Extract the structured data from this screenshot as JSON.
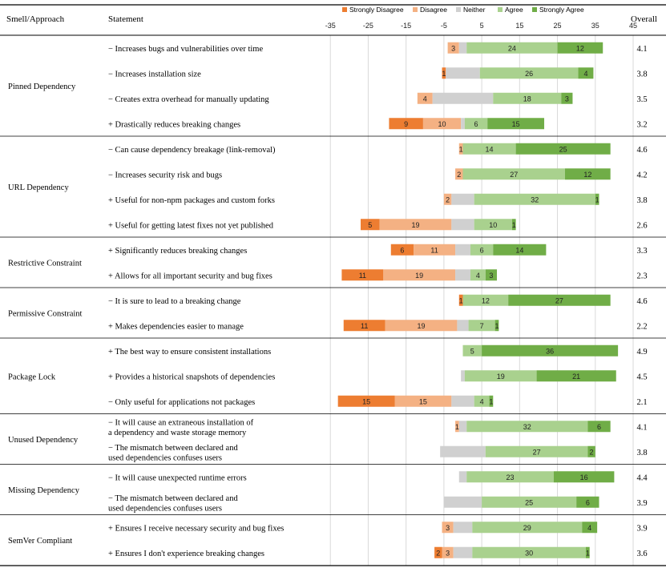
{
  "header": {
    "col_group": "Smell/Approach",
    "col_statement": "Statement",
    "col_overall": "Overall"
  },
  "chart_data": {
    "type": "bar",
    "orientation": "horizontal-diverging-stacked",
    "xlim": [
      -45,
      45
    ],
    "x_ticks": [
      -35,
      -25,
      -15,
      -5,
      5,
      15,
      25,
      35,
      45
    ],
    "grid": true,
    "legend_position": "top",
    "series": [
      {
        "name": "Strongly Disagree",
        "color": "#ED7D31"
      },
      {
        "name": "Disagree",
        "color": "#F4B183"
      },
      {
        "name": "Neither",
        "color": "#D0D0D0"
      },
      {
        "name": "Agree",
        "color": "#A9D18E"
      },
      {
        "name": "Strongly Agree",
        "color": "#70AD47"
      }
    ],
    "groups": [
      {
        "name": "Pinned Dependency",
        "rows": [
          {
            "statement": [
              "− Increases bugs and vulnerabilities over time"
            ],
            "values": [
              0,
              3,
              2,
              24,
              12
            ],
            "labels": [
              "",
              "3",
              "",
              "24",
              "12"
            ],
            "overall": "4.1"
          },
          {
            "statement": [
              "− Increases installation size"
            ],
            "values": [
              1,
              0,
              9,
              26,
              4
            ],
            "labels": [
              "1",
              "",
              "",
              "26",
              "4"
            ],
            "overall": "3.8"
          },
          {
            "statement": [
              "− Creates extra overhead for manually updating"
            ],
            "values": [
              0,
              4,
              16,
              18,
              3
            ],
            "labels": [
              "",
              "4",
              "",
              "18",
              "3"
            ],
            "overall": "3.5"
          },
          {
            "statement": [
              "+ Drastically reduces breaking changes"
            ],
            "values": [
              9,
              10,
              1,
              6,
              15
            ],
            "labels": [
              "9",
              "10",
              "",
              "6",
              "15"
            ],
            "overall": "3.2"
          }
        ]
      },
      {
        "name": "URL Dependency",
        "rows": [
          {
            "statement": [
              "− Can cause dependency breakage (link-removal)"
            ],
            "values": [
              0,
              1,
              0,
              14,
              25
            ],
            "labels": [
              "",
              "1",
              "",
              "14",
              "25"
            ],
            "overall": "4.6"
          },
          {
            "statement": [
              "− Increases security risk and bugs"
            ],
            "values": [
              0,
              2,
              0,
              27,
              12
            ],
            "labels": [
              "",
              "2",
              "",
              "27",
              "12"
            ],
            "overall": "4.2"
          },
          {
            "statement": [
              "+ Useful for non-npm packages and custom forks"
            ],
            "values": [
              0,
              2,
              6,
              32,
              1
            ],
            "labels": [
              "",
              "2",
              "",
              "32",
              "1"
            ],
            "overall": "3.8"
          },
          {
            "statement": [
              "+ Useful for getting latest fixes not yet published"
            ],
            "values": [
              5,
              19,
              6,
              10,
              1
            ],
            "labels": [
              "5",
              "19",
              "",
              "10",
              "1"
            ],
            "overall": "2.6"
          }
        ]
      },
      {
        "name": "Restrictive Constraint",
        "rows": [
          {
            "statement": [
              "+ Significantly reduces breaking changes"
            ],
            "values": [
              6,
              11,
              4,
              6,
              14
            ],
            "labels": [
              "6",
              "11",
              "",
              "6",
              "14"
            ],
            "overall": "3.3"
          },
          {
            "statement": [
              "+ Allows for all important security and bug fixes"
            ],
            "values": [
              11,
              19,
              4,
              4,
              3
            ],
            "labels": [
              "11",
              "19",
              "",
              "4",
              "3"
            ],
            "overall": "2.3"
          }
        ]
      },
      {
        "name": "Permissive Constraint",
        "rows": [
          {
            "statement": [
              "− It is sure to lead to a breaking change"
            ],
            "values": [
              1,
              0,
              0,
              12,
              27
            ],
            "labels": [
              "1",
              "",
              "",
              "12",
              "27"
            ],
            "overall": "4.6"
          },
          {
            "statement": [
              "+ Makes dependencies easier to manage"
            ],
            "values": [
              11,
              19,
              3,
              7,
              1
            ],
            "labels": [
              "11",
              "19",
              "",
              "7",
              "1"
            ],
            "overall": "2.2"
          }
        ]
      },
      {
        "name": "Package Lock",
        "rows": [
          {
            "statement": [
              "+ The best way to ensure consistent installations"
            ],
            "values": [
              0,
              0,
              0,
              5,
              36
            ],
            "labels": [
              "",
              "",
              "",
              "5",
              "36"
            ],
            "overall": "4.9"
          },
          {
            "statement": [
              "+ Provides a historical snapshots of dependencies"
            ],
            "values": [
              0,
              0,
              1,
              19,
              21
            ],
            "labels": [
              "",
              "",
              "",
              "19",
              "21"
            ],
            "overall": "4.5"
          },
          {
            "statement": [
              "− Only useful for applications not packages"
            ],
            "values": [
              15,
              15,
              6,
              4,
              1
            ],
            "labels": [
              "15",
              "15",
              "",
              "4",
              "1"
            ],
            "overall": "2.1"
          }
        ]
      },
      {
        "name": "Unused Dependency",
        "rows": [
          {
            "statement": [
              "− It will cause an extraneous installation of",
              "a dependency and waste storage memory"
            ],
            "values": [
              0,
              1,
              2,
              32,
              6
            ],
            "labels": [
              "",
              "1",
              "",
              "32",
              "6"
            ],
            "overall": "4.1"
          },
          {
            "statement": [
              "− The mismatch between declared and",
              "used dependencies confuses users"
            ],
            "values": [
              0,
              0,
              12,
              27,
              2
            ],
            "labels": [
              "",
              "",
              "",
              "27",
              "2"
            ],
            "overall": "3.8"
          }
        ]
      },
      {
        "name": "Missing Dependency",
        "rows": [
          {
            "statement": [
              "− It will cause unexpected runtime errors"
            ],
            "values": [
              0,
              0,
              2,
              23,
              16
            ],
            "labels": [
              "",
              "",
              "",
              "23",
              "16"
            ],
            "overall": "4.4"
          },
          {
            "statement": [
              "− The mismatch between declared and",
              "used dependencies confuses users"
            ],
            "values": [
              0,
              0,
              10,
              25,
              6
            ],
            "labels": [
              "",
              "",
              "",
              "25",
              "6"
            ],
            "overall": "3.9"
          }
        ]
      },
      {
        "name": "SemVer Compliant",
        "rows": [
          {
            "statement": [
              "+ Ensures I receive necessary security and bug fixes"
            ],
            "values": [
              0,
              3,
              5,
              29,
              4
            ],
            "labels": [
              "",
              "3",
              "",
              "29",
              "4"
            ],
            "overall": "3.9"
          },
          {
            "statement": [
              "+ Ensures I don't experience breaking changes"
            ],
            "values": [
              2,
              3,
              5,
              30,
              1
            ],
            "labels": [
              "2",
              "3",
              "",
              "30",
              "1"
            ],
            "overall": "3.6"
          }
        ]
      }
    ]
  }
}
